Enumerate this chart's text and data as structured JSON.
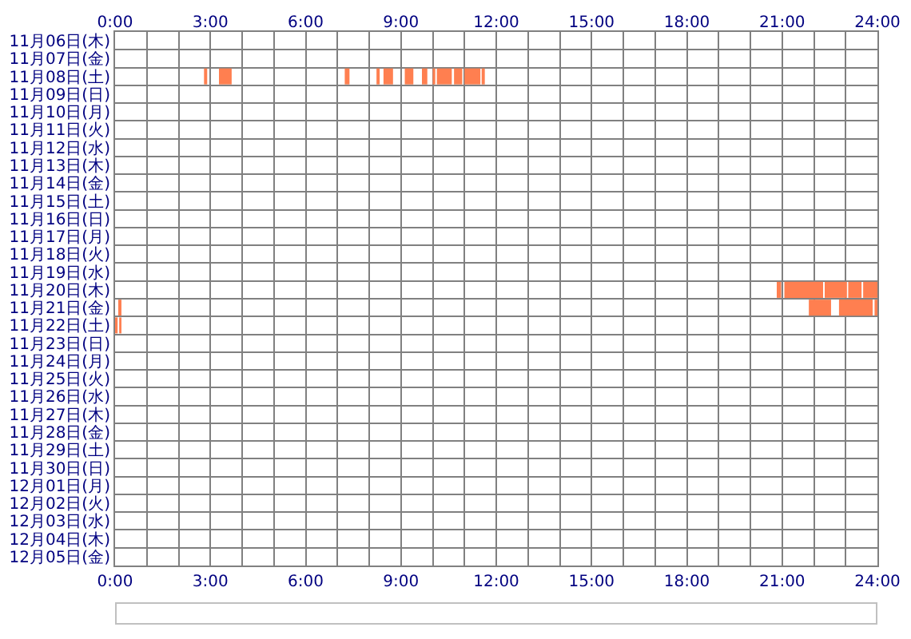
{
  "chart_data": {
    "type": "bar",
    "orientation": "horizontal",
    "grid": true,
    "categories": [
      "11月06日(木)",
      "11月07日(金)",
      "11月08日(土)",
      "11月09日(日)",
      "11月10日(月)",
      "11月11日(火)",
      "11月12日(水)",
      "11月13日(木)",
      "11月14日(金)",
      "11月15日(土)",
      "11月16日(日)",
      "11月17日(月)",
      "11月18日(火)",
      "11月19日(水)",
      "11月20日(木)",
      "11月21日(金)",
      "11月22日(土)",
      "11月23日(日)",
      "11月24日(月)",
      "11月25日(火)",
      "11月26日(水)",
      "11月27日(木)",
      "11月28日(金)",
      "11月29日(土)",
      "11月30日(日)",
      "12月01日(月)",
      "12月02日(火)",
      "12月03日(水)",
      "12月04日(木)",
      "12月05日(金)"
    ],
    "series": [
      {
        "color": "#ff7f50",
        "base": [
          null,
          null,
          2.8,
          null,
          null,
          null,
          null,
          null,
          null,
          null,
          null,
          null,
          null,
          null,
          20.83,
          0.1,
          0,
          null,
          null,
          null,
          null,
          null,
          null,
          null,
          null,
          null,
          null,
          null,
          null,
          null
        ],
        "values": [
          null,
          null,
          0.1,
          null,
          null,
          null,
          null,
          null,
          null,
          null,
          null,
          null,
          null,
          null,
          0.14,
          0.1,
          0.08,
          null,
          null,
          null,
          null,
          null,
          null,
          null,
          null,
          null,
          null,
          null,
          null,
          null
        ]
      },
      {
        "color": "#ff7f50",
        "base": [
          null,
          null,
          3.27,
          null,
          null,
          null,
          null,
          null,
          null,
          null,
          null,
          null,
          null,
          null,
          21.07,
          21.84,
          0.13,
          null,
          null,
          null,
          null,
          null,
          null,
          null,
          null,
          null,
          null,
          null,
          null,
          null
        ],
        "values": [
          null,
          null,
          0.4,
          null,
          null,
          null,
          null,
          null,
          null,
          null,
          null,
          null,
          null,
          null,
          1.22,
          0.7,
          0.07,
          null,
          null,
          null,
          null,
          null,
          null,
          null,
          null,
          null,
          null,
          null,
          null,
          null
        ]
      },
      {
        "color": "#ff7f50",
        "base": [
          null,
          null,
          7.23,
          null,
          null,
          null,
          null,
          null,
          null,
          null,
          null,
          null,
          null,
          null,
          22.34,
          22.79,
          null,
          null,
          null,
          null,
          null,
          null,
          null,
          null,
          null,
          null,
          null,
          null,
          null,
          null
        ],
        "values": [
          null,
          null,
          0.15,
          null,
          null,
          null,
          null,
          null,
          null,
          null,
          null,
          null,
          null,
          null,
          0.7,
          1.06,
          null,
          null,
          null,
          null,
          null,
          null,
          null,
          null,
          null,
          null,
          null,
          null,
          null,
          null
        ]
      },
      {
        "color": "#ff7f50",
        "base": [
          null,
          null,
          8.23,
          null,
          null,
          null,
          null,
          null,
          null,
          null,
          null,
          null,
          null,
          null,
          23.08,
          23.91,
          null,
          null,
          null,
          null,
          null,
          null,
          null,
          null,
          null,
          null,
          null,
          null,
          null,
          null
        ],
        "values": [
          null,
          null,
          0.1,
          null,
          null,
          null,
          null,
          null,
          null,
          null,
          null,
          null,
          null,
          null,
          0.42,
          0.09,
          null,
          null,
          null,
          null,
          null,
          null,
          null,
          null,
          null,
          null,
          null,
          null,
          null,
          null
        ]
      },
      {
        "color": "#ff7f50",
        "base": [
          null,
          null,
          8.45,
          null,
          null,
          null,
          null,
          null,
          null,
          null,
          null,
          null,
          null,
          null,
          23.55,
          null,
          null,
          null,
          null,
          null,
          null,
          null,
          null,
          null,
          null,
          null,
          null,
          null,
          null,
          null
        ],
        "values": [
          null,
          null,
          0.3,
          null,
          null,
          null,
          null,
          null,
          null,
          null,
          null,
          null,
          null,
          null,
          0.45,
          null,
          null,
          null,
          null,
          null,
          null,
          null,
          null,
          null,
          null,
          null,
          null,
          null,
          null,
          null
        ]
      },
      {
        "color": "#ff7f50",
        "base": [
          null,
          null,
          9.12,
          null,
          null,
          null,
          null,
          null,
          null,
          null,
          null,
          null,
          null,
          null,
          null,
          null,
          null,
          null,
          null,
          null,
          null,
          null,
          null,
          null,
          null,
          null,
          null,
          null,
          null,
          null
        ],
        "values": [
          null,
          null,
          0.27,
          null,
          null,
          null,
          null,
          null,
          null,
          null,
          null,
          null,
          null,
          null,
          null,
          null,
          null,
          null,
          null,
          null,
          null,
          null,
          null,
          null,
          null,
          null,
          null,
          null,
          null,
          null
        ]
      },
      {
        "color": "#ff7f50",
        "base": [
          null,
          null,
          9.66,
          null,
          null,
          null,
          null,
          null,
          null,
          null,
          null,
          null,
          null,
          null,
          null,
          null,
          null,
          null,
          null,
          null,
          null,
          null,
          null,
          null,
          null,
          null,
          null,
          null,
          null,
          null
        ],
        "values": [
          null,
          null,
          0.17,
          null,
          null,
          null,
          null,
          null,
          null,
          null,
          null,
          null,
          null,
          null,
          null,
          null,
          null,
          null,
          null,
          null,
          null,
          null,
          null,
          null,
          null,
          null,
          null,
          null,
          null,
          null
        ]
      },
      {
        "color": "#ff7f50",
        "base": [
          null,
          null,
          10.0,
          null,
          null,
          null,
          null,
          null,
          null,
          null,
          null,
          null,
          null,
          null,
          null,
          null,
          null,
          null,
          null,
          null,
          null,
          null,
          null,
          null,
          null,
          null,
          null,
          null,
          null,
          null
        ],
        "values": [
          null,
          null,
          0.08,
          null,
          null,
          null,
          null,
          null,
          null,
          null,
          null,
          null,
          null,
          null,
          null,
          null,
          null,
          null,
          null,
          null,
          null,
          null,
          null,
          null,
          null,
          null,
          null,
          null,
          null,
          null
        ]
      },
      {
        "color": "#ff7f50",
        "base": [
          null,
          null,
          10.13,
          null,
          null,
          null,
          null,
          null,
          null,
          null,
          null,
          null,
          null,
          null,
          null,
          null,
          null,
          null,
          null,
          null,
          null,
          null,
          null,
          null,
          null,
          null,
          null,
          null,
          null,
          null
        ],
        "values": [
          null,
          null,
          0.47,
          null,
          null,
          null,
          null,
          null,
          null,
          null,
          null,
          null,
          null,
          null,
          null,
          null,
          null,
          null,
          null,
          null,
          null,
          null,
          null,
          null,
          null,
          null,
          null,
          null,
          null,
          null
        ]
      },
      {
        "color": "#ff7f50",
        "base": [
          null,
          null,
          10.67,
          null,
          null,
          null,
          null,
          null,
          null,
          null,
          null,
          null,
          null,
          null,
          null,
          null,
          null,
          null,
          null,
          null,
          null,
          null,
          null,
          null,
          null,
          null,
          null,
          null,
          null,
          null
        ],
        "values": [
          null,
          null,
          0.26,
          null,
          null,
          null,
          null,
          null,
          null,
          null,
          null,
          null,
          null,
          null,
          null,
          null,
          null,
          null,
          null,
          null,
          null,
          null,
          null,
          null,
          null,
          null,
          null,
          null,
          null,
          null
        ]
      },
      {
        "color": "#ff7f50",
        "base": [
          null,
          null,
          11.0,
          null,
          null,
          null,
          null,
          null,
          null,
          null,
          null,
          null,
          null,
          null,
          null,
          null,
          null,
          null,
          null,
          null,
          null,
          null,
          null,
          null,
          null,
          null,
          null,
          null,
          null,
          null
        ],
        "values": [
          null,
          null,
          0.5,
          null,
          null,
          null,
          null,
          null,
          null,
          null,
          null,
          null,
          null,
          null,
          null,
          null,
          null,
          null,
          null,
          null,
          null,
          null,
          null,
          null,
          null,
          null,
          null,
          null,
          null,
          null
        ]
      },
      {
        "color": "#ff7f50",
        "base": [
          null,
          null,
          11.54,
          null,
          null,
          null,
          null,
          null,
          null,
          null,
          null,
          null,
          null,
          null,
          null,
          null,
          null,
          null,
          null,
          null,
          null,
          null,
          null,
          null,
          null,
          null,
          null,
          null,
          null,
          null
        ],
        "values": [
          null,
          null,
          0.1,
          null,
          null,
          null,
          null,
          null,
          null,
          null,
          null,
          null,
          null,
          null,
          null,
          null,
          null,
          null,
          null,
          null,
          null,
          null,
          null,
          null,
          null,
          null,
          null,
          null,
          null,
          null
        ]
      }
    ],
    "xlim": [
      0,
      24
    ],
    "xticks": [
      {
        "value": 0,
        "label": "0:00"
      },
      {
        "value": 1,
        "label": null
      },
      {
        "value": 2,
        "label": null
      },
      {
        "value": 3,
        "label": "3:00"
      },
      {
        "value": 4,
        "label": null
      },
      {
        "value": 5,
        "label": null
      },
      {
        "value": 6,
        "label": "6:00"
      },
      {
        "value": 7,
        "label": null
      },
      {
        "value": 8,
        "label": null
      },
      {
        "value": 9,
        "label": "9:00"
      },
      {
        "value": 10,
        "label": null
      },
      {
        "value": 11,
        "label": null
      },
      {
        "value": 12,
        "label": "12:00"
      },
      {
        "value": 13,
        "label": null
      },
      {
        "value": 14,
        "label": null
      },
      {
        "value": 15,
        "label": "15:00"
      },
      {
        "value": 16,
        "label": null
      },
      {
        "value": 17,
        "label": null
      },
      {
        "value": 18,
        "label": "18:00"
      },
      {
        "value": 19,
        "label": null
      },
      {
        "value": 20,
        "label": null
      },
      {
        "value": 21,
        "label": "21:00"
      },
      {
        "value": 22,
        "label": null
      },
      {
        "value": 23,
        "label": null
      },
      {
        "value": 24,
        "label": "24:00"
      }
    ],
    "x2lim": [
      0,
      24
    ],
    "x2ticks": [
      {
        "value": 0,
        "label": "0:00"
      },
      {
        "value": 1,
        "label": null
      },
      {
        "value": 2,
        "label": null
      },
      {
        "value": 3,
        "label": "3:00"
      },
      {
        "value": 4,
        "label": null
      },
      {
        "value": 5,
        "label": null
      },
      {
        "value": 6,
        "label": "6:00"
      },
      {
        "value": 7,
        "label": null
      },
      {
        "value": 8,
        "label": null
      },
      {
        "value": 9,
        "label": "9:00"
      },
      {
        "value": 10,
        "label": null
      },
      {
        "value": 11,
        "label": null
      },
      {
        "value": 12,
        "label": "12:00"
      },
      {
        "value": 13,
        "label": null
      },
      {
        "value": 14,
        "label": null
      },
      {
        "value": 15,
        "label": "15:00"
      },
      {
        "value": 16,
        "label": null
      },
      {
        "value": 17,
        "label": null
      },
      {
        "value": 18,
        "label": "18:00"
      },
      {
        "value": 19,
        "label": null
      },
      {
        "value": 20,
        "label": null
      },
      {
        "value": 21,
        "label": "21:00"
      },
      {
        "value": 22,
        "label": null
      },
      {
        "value": 23,
        "label": null
      },
      {
        "value": 24,
        "label": "24:00"
      }
    ]
  }
}
